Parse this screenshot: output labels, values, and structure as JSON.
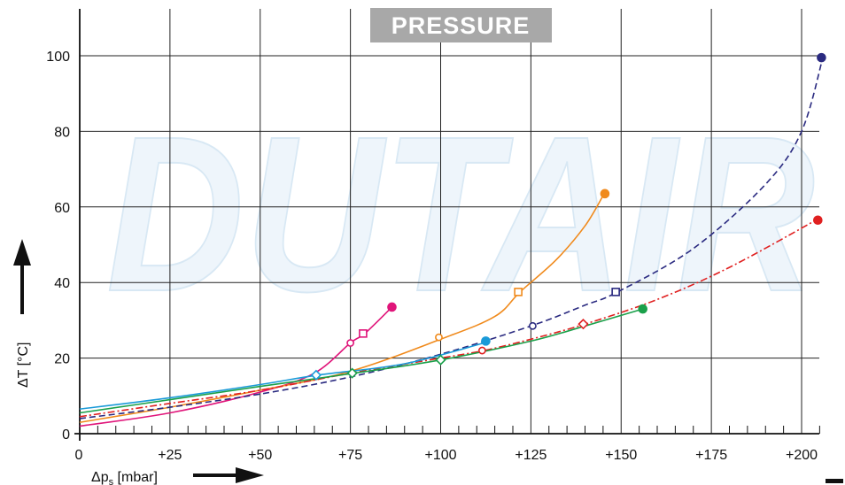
{
  "chart_data": {
    "type": "line",
    "title": "PRESSURE",
    "watermark": "DUTAIR",
    "xlabel": "Δp",
    "xlabel_sub": "s",
    "xlabel_unit": " [mbar]",
    "ylabel": "ΔT [°C]",
    "xlim": [
      0,
      207
    ],
    "ylim": [
      0,
      110
    ],
    "x_ticks": [
      0,
      25,
      50,
      75,
      100,
      125,
      150,
      175,
      200
    ],
    "x_tick_labels": [
      "0",
      "+25",
      "+50",
      "+75",
      "+100",
      "+125",
      "+150",
      "+175",
      "+200"
    ],
    "y_ticks": [
      0,
      20,
      40,
      60,
      80,
      100
    ],
    "y_tick_labels": [
      "0",
      "20",
      "40",
      "60",
      "80",
      "100"
    ],
    "grid": true,
    "series": [
      {
        "color": "#e0157a",
        "dash": "solid",
        "points": [
          [
            0,
            2
          ],
          [
            25,
            5.5
          ],
          [
            50,
            11
          ],
          [
            65,
            16
          ],
          [
            75,
            24
          ],
          [
            79,
            26.5
          ],
          [
            86,
            33
          ]
        ],
        "markers": [
          {
            "x": 75,
            "y": 24,
            "shape": "circle",
            "fill": false
          },
          {
            "x": 78.5,
            "y": 26.5,
            "shape": "square",
            "fill": false
          },
          {
            "x": 86.5,
            "y": 33.5,
            "shape": "circle",
            "fill": true
          }
        ]
      },
      {
        "color": "#f08a1c",
        "dash": "solid",
        "points": [
          [
            0,
            3
          ],
          [
            25,
            7
          ],
          [
            50,
            11.5
          ],
          [
            75,
            16.5
          ],
          [
            100,
            25
          ],
          [
            115,
            31
          ],
          [
            122,
            37.5
          ],
          [
            132,
            46
          ],
          [
            140,
            55
          ],
          [
            145,
            63
          ]
        ],
        "markers": [
          {
            "x": 99.5,
            "y": 25.5,
            "shape": "circle",
            "fill": false
          },
          {
            "x": 121.5,
            "y": 37.5,
            "shape": "square",
            "fill": false
          },
          {
            "x": 145.5,
            "y": 63.5,
            "shape": "circle",
            "fill": true
          }
        ]
      },
      {
        "color": "#2a2a80",
        "dash": "dashed",
        "points": [
          [
            0,
            4
          ],
          [
            25,
            7
          ],
          [
            50,
            10.5
          ],
          [
            75,
            15
          ],
          [
            100,
            21
          ],
          [
            125,
            28.5
          ],
          [
            140,
            34
          ],
          [
            149,
            37.5
          ],
          [
            170,
            49
          ],
          [
            190,
            66
          ],
          [
            200,
            80
          ],
          [
            206,
            100
          ]
        ],
        "markers": [
          {
            "x": 125.5,
            "y": 28.5,
            "shape": "circle",
            "fill": false
          },
          {
            "x": 148.5,
            "y": 37.5,
            "shape": "square",
            "fill": false
          },
          {
            "x": 205.5,
            "y": 99.5,
            "shape": "circle",
            "fill": true
          }
        ]
      },
      {
        "color": "#e02020",
        "dash": "dashdot",
        "points": [
          [
            0,
            4.5
          ],
          [
            25,
            8
          ],
          [
            50,
            11.5
          ],
          [
            75,
            16
          ],
          [
            100,
            20
          ],
          [
            112,
            22
          ],
          [
            125,
            25
          ],
          [
            140,
            29
          ],
          [
            160,
            35.5
          ],
          [
            180,
            44
          ],
          [
            204,
            56.5
          ]
        ],
        "markers": [
          {
            "x": 111.5,
            "y": 22,
            "shape": "circle",
            "fill": false
          },
          {
            "x": 139.5,
            "y": 29,
            "shape": "diamond",
            "fill": false
          },
          {
            "x": 204.5,
            "y": 56.5,
            "shape": "circle",
            "fill": true
          }
        ]
      },
      {
        "color": "#1aa04a",
        "dash": "solid",
        "points": [
          [
            0,
            5.5
          ],
          [
            25,
            9
          ],
          [
            50,
            12.5
          ],
          [
            76,
            16
          ],
          [
            100,
            19.5
          ],
          [
            125,
            24.5
          ],
          [
            140,
            28.5
          ],
          [
            156,
            33
          ]
        ],
        "markers": [
          {
            "x": 75.5,
            "y": 16,
            "shape": "diamond",
            "fill": false
          },
          {
            "x": 100,
            "y": 19.5,
            "shape": "diamond",
            "fill": false
          },
          {
            "x": 156,
            "y": 33,
            "shape": "circle",
            "fill": true
          }
        ]
      },
      {
        "color": "#1a9ad8",
        "dash": "solid",
        "points": [
          [
            0,
            6.5
          ],
          [
            25,
            9.5
          ],
          [
            50,
            13
          ],
          [
            66,
            15.5
          ],
          [
            90,
            18.5
          ],
          [
            112,
            24
          ]
        ],
        "markers": [
          {
            "x": 65.5,
            "y": 15.5,
            "shape": "diamond",
            "fill": false
          },
          {
            "x": 112.5,
            "y": 24.5,
            "shape": "circle",
            "fill": true
          }
        ]
      }
    ]
  }
}
